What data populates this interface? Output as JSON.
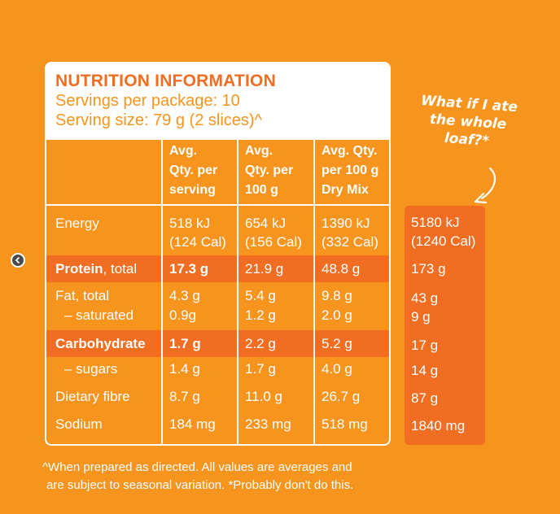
{
  "header": {
    "title": "NUTRITION INFORMATION",
    "servings": "Servings per package: 10",
    "serving_size": "Serving size: 79 g (2 slices)^"
  },
  "columns": [
    {
      "line1": "Avg.",
      "line2": "Qty. per",
      "line3": "serving"
    },
    {
      "line1": "Avg.",
      "line2": "Qty. per",
      "line3": "100 g"
    },
    {
      "line1": "Avg. Qty.",
      "line2": "per 100 g",
      "line3": "Dry Mix"
    }
  ],
  "rows": {
    "energy": {
      "label": "Energy",
      "serving": "518 kJ",
      "serving_cal": "(124 Cal)",
      "per100": "654 kJ",
      "per100_cal": "(156 Cal)",
      "dry": "1390 kJ",
      "dry_cal": "(332 Cal)"
    },
    "protein": {
      "label_bold": "Protein",
      "label_rest": ", total",
      "serving": "17.3 g",
      "per100": "21.9 g",
      "dry": "48.8 g"
    },
    "fat": {
      "label": "Fat, total",
      "serving": "4.3 g",
      "per100": "5.4 g",
      "dry": "9.8 g"
    },
    "saturated": {
      "label": "– saturated",
      "serving": "0.9g",
      "per100": "1.2 g",
      "dry": "2.0 g"
    },
    "carb": {
      "label": "Carbohydrate",
      "serving": "1.7 g",
      "per100": "2.2 g",
      "dry": "5.2 g"
    },
    "sugars": {
      "label": "– sugars",
      "serving": "1.4 g",
      "per100": "1.7 g",
      "dry": "4.0 g"
    },
    "fibre": {
      "label": "Dietary fibre",
      "serving": "8.7 g",
      "per100": "11.0 g",
      "dry": "26.7 g"
    },
    "sodium": {
      "label": "Sodium",
      "serving": "184 mg",
      "per100": "233 mg",
      "dry": "518 mg"
    }
  },
  "whole_loaf": {
    "quip_line1": "What if I ate",
    "quip_line2": "the whole",
    "quip_line3": "loaf?*",
    "energy": "5180 kJ",
    "energy_cal": "(1240 Cal)",
    "protein": "173 g",
    "fat": "43 g",
    "saturated": "9 g",
    "carb": "17 g",
    "sugars": "14 g",
    "fibre": "87 g",
    "sodium": "1840 mg"
  },
  "footnote": {
    "line1": "^When prepared as directed. All values are averages and",
    "line2": "are subject to seasonal variation. *Probably don't do this."
  },
  "colors": {
    "background": "#f7941d",
    "highlight": "#f06d22",
    "text": "#ffffff"
  },
  "icons": {
    "back": "back-arrow-icon",
    "pointer": "curved-arrow-icon"
  }
}
